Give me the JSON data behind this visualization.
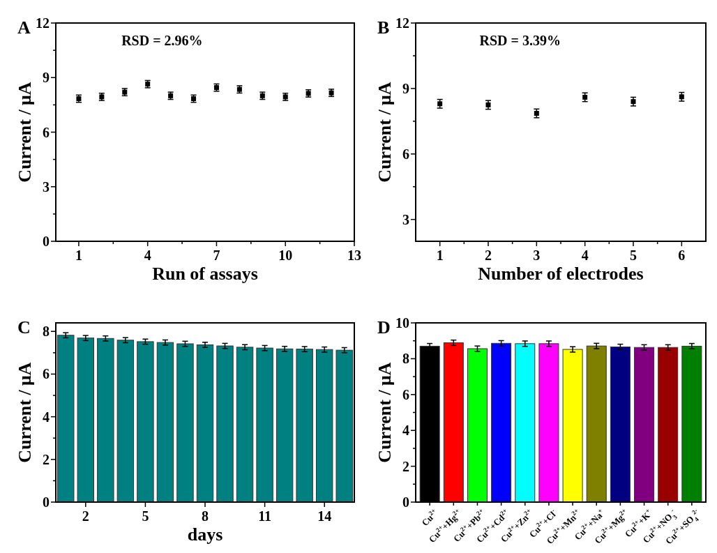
{
  "chart_data": [
    {
      "type": "scatter",
      "title": "A",
      "xlabel": "Run of assays",
      "ylabel": "Current / μA",
      "marker": "square",
      "color": "#000000",
      "x": [
        1,
        2,
        3,
        4,
        5,
        6,
        7,
        8,
        9,
        10,
        11,
        12
      ],
      "values": [
        7.84,
        7.94,
        8.2,
        8.64,
        8.0,
        7.84,
        8.45,
        8.35,
        8.0,
        7.94,
        8.13,
        8.16
      ],
      "errors": [
        0.2,
        0.2,
        0.2,
        0.2,
        0.2,
        0.2,
        0.2,
        0.2,
        0.2,
        0.2,
        0.2,
        0.2
      ],
      "xlim": [
        0,
        13
      ],
      "xticks": [
        1,
        {
          "value": 2.5,
          "label": null
        },
        4,
        {
          "value": 5.5,
          "label": null
        },
        7,
        {
          "value": 8.5,
          "label": null
        },
        10,
        {
          "value": 11.5,
          "label": null
        },
        13
      ],
      "ylim": [
        0,
        12
      ],
      "yticks": [
        0,
        {
          "value": 1.5,
          "label": null
        },
        3,
        {
          "value": 4.5,
          "label": null
        },
        6,
        {
          "value": 7.5,
          "label": null
        },
        9,
        {
          "value": 10.5,
          "label": null
        },
        12
      ],
      "annotations": [
        "RSD = 2.96%"
      ]
    },
    {
      "type": "scatter",
      "title": "B",
      "xlabel": "Number of electrodes",
      "ylabel": "Current / μA",
      "marker": "square",
      "color": "#000000",
      "x": [
        1,
        2,
        3,
        4,
        5,
        6
      ],
      "values": [
        8.3,
        8.25,
        7.86,
        8.6,
        8.4,
        8.62
      ],
      "errors": [
        0.2,
        0.2,
        0.2,
        0.2,
        0.2,
        0.2
      ],
      "xlim": [
        0.5,
        6.5
      ],
      "xticks": [
        1,
        {
          "value": 1.5,
          "label": null
        },
        2,
        {
          "value": 2.5,
          "label": null
        },
        3,
        {
          "value": 3.5,
          "label": null
        },
        4,
        {
          "value": 4.5,
          "label": null
        },
        5,
        {
          "value": 5.5,
          "label": null
        },
        6
      ],
      "ylim": [
        2,
        12
      ],
      "yticks": [
        3,
        {
          "value": 4.5,
          "label": null
        },
        6,
        {
          "value": 7.5,
          "label": null
        },
        9,
        {
          "value": 10.5,
          "label": null
        },
        12
      ],
      "annotations": [
        "RSD = 3.39%"
      ]
    },
    {
      "type": "bar",
      "title": "C",
      "xlabel": "days",
      "ylabel": "Current / μA",
      "color": "#008080",
      "x": [
        1,
        2,
        3,
        4,
        5,
        6,
        7,
        8,
        9,
        10,
        11,
        12,
        13,
        14,
        15
      ],
      "values": [
        7.82,
        7.69,
        7.67,
        7.59,
        7.52,
        7.48,
        7.42,
        7.37,
        7.32,
        7.26,
        7.22,
        7.18,
        7.17,
        7.15,
        7.12
      ],
      "errors": [
        0.12,
        0.12,
        0.12,
        0.12,
        0.12,
        0.12,
        0.12,
        0.12,
        0.12,
        0.12,
        0.12,
        0.12,
        0.12,
        0.12,
        0.12
      ],
      "xlim": [
        0.5,
        15.5
      ],
      "xticks": [
        2,
        5,
        8,
        11,
        14
      ],
      "ylim": [
        0,
        8.4
      ],
      "yticks": [
        0,
        {
          "value": 1,
          "label": null
        },
        2,
        {
          "value": 3,
          "label": null
        },
        4,
        {
          "value": 5,
          "label": null
        },
        6,
        {
          "value": 7,
          "label": null
        },
        8
      ]
    },
    {
      "type": "bar",
      "title": "D",
      "ylabel": "Current / μA",
      "categories": [
        "Cu$^{2+}$",
        "Cu$^{2+}$+Hg$^{2+}$",
        "Cu$^{2+}$+Pb$^{2+}$",
        "Cu$^{2+}$+Cd$^{2+}$",
        "Cu$^{2+}$+Zn$^{2+}$",
        "Cu$^{2+}$+Cl$^{-}$",
        "Cu$^{2+}$+Mn$^{2+}$",
        "Cu$^{2+}$+Na$^{+}$",
        "Cu$^{2+}$+Mg$^{2+}$",
        "Cu$^{2+}$+K$^{+}$",
        "Cu$^{2+}$+NO$_{3}$$^{-}$",
        "Cu$^{2+}$+SO$_{4}$$^{2-}$"
      ],
      "values": [
        8.7,
        8.89,
        8.56,
        8.86,
        8.84,
        8.84,
        8.52,
        8.71,
        8.66,
        8.63,
        8.63,
        8.7
      ],
      "errors": [
        0.15,
        0.15,
        0.15,
        0.15,
        0.15,
        0.15,
        0.15,
        0.15,
        0.15,
        0.15,
        0.15,
        0.15
      ],
      "colors": [
        "#000000",
        "#ff0000",
        "#00ff00",
        "#0000ff",
        "#00ffff",
        "#ff00ff",
        "#ffff00",
        "#808000",
        "#000080",
        "#800080",
        "#990000",
        "#008000"
      ],
      "ylim": [
        0,
        10
      ],
      "yticks": [
        0,
        {
          "value": 1,
          "label": null
        },
        2,
        {
          "value": 3,
          "label": null
        },
        4,
        {
          "value": 5,
          "label": null
        },
        6,
        {
          "value": 7,
          "label": null
        },
        8,
        {
          "value": 9,
          "label": null
        },
        10
      ]
    }
  ]
}
